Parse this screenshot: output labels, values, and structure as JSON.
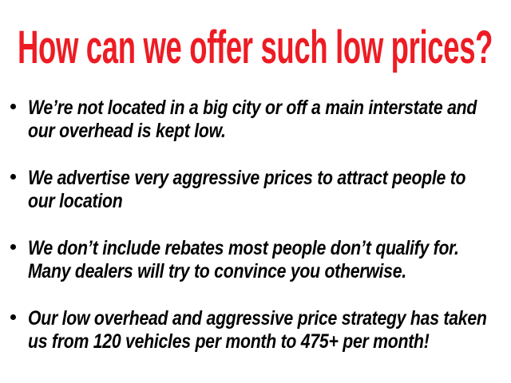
{
  "slide": {
    "title": "How can we offer such low prices?",
    "title_color": "#ED1C24",
    "bullets": [
      {
        "lines": [
          "We’re not located in a big city or off a main interstate and",
          "our overhead is kept low."
        ]
      },
      {
        "lines": [
          "We advertise very aggressive prices to attract people to",
          "our location"
        ]
      },
      {
        "lines": [
          "We don’t include rebates most people don’t qualify for.",
          "Many dealers will try to convince you otherwise."
        ]
      },
      {
        "lines": [
          "Our low overhead and aggressive price strategy has taken",
          "us from 120 vehicles per month to 475+ per month!"
        ]
      }
    ]
  }
}
